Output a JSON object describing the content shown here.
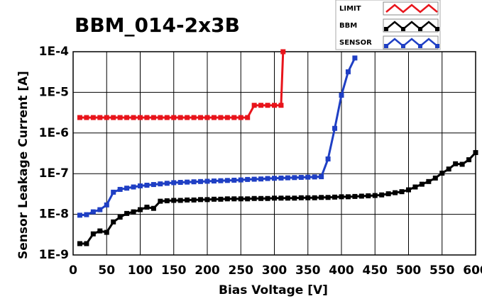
{
  "chart_data": {
    "type": "line",
    "title": "BBM_014-2x3B",
    "x_label": "Bias Voltage [V]",
    "y_label": "Sensor Leakage Current [A]",
    "xlim": [
      0,
      600
    ],
    "xticks": [
      0,
      50,
      100,
      150,
      200,
      250,
      300,
      350,
      400,
      450,
      500,
      550,
      600
    ],
    "ylim": [
      1e-09,
      0.0001
    ],
    "y_scale": "log",
    "yticks": [
      {
        "value": 1e-09,
        "label": "1E-9"
      },
      {
        "value": 1e-08,
        "label": "1E-8"
      },
      {
        "value": 1e-07,
        "label": "1E-7"
      },
      {
        "value": 1e-06,
        "label": "1E-6"
      },
      {
        "value": 1e-05,
        "label": "1E-5"
      },
      {
        "value": 0.0001,
        "label": "1E-4"
      }
    ],
    "grid": true,
    "legend": "top-right",
    "series": [
      {
        "name": "LIMIT",
        "color": "#e8141b",
        "x": [
          10,
          20,
          30,
          40,
          50,
          60,
          70,
          80,
          90,
          100,
          110,
          120,
          130,
          140,
          150,
          160,
          170,
          180,
          190,
          200,
          210,
          220,
          230,
          240,
          250,
          260,
          270,
          280,
          290,
          300,
          310,
          313
        ],
        "values": [
          2.4e-06,
          2.4e-06,
          2.4e-06,
          2.4e-06,
          2.4e-06,
          2.4e-06,
          2.4e-06,
          2.4e-06,
          2.4e-06,
          2.4e-06,
          2.4e-06,
          2.4e-06,
          2.4e-06,
          2.4e-06,
          2.4e-06,
          2.4e-06,
          2.4e-06,
          2.4e-06,
          2.4e-06,
          2.4e-06,
          2.4e-06,
          2.4e-06,
          2.4e-06,
          2.4e-06,
          2.4e-06,
          2.4e-06,
          4.8e-06,
          4.8e-06,
          4.8e-06,
          4.8e-06,
          4.8e-06,
          0.0001
        ]
      },
      {
        "name": "BBM",
        "color": "#000000",
        "x": [
          10,
          20,
          30,
          40,
          50,
          60,
          70,
          80,
          90,
          100,
          110,
          120,
          130,
          140,
          150,
          160,
          170,
          180,
          190,
          200,
          210,
          220,
          230,
          240,
          250,
          260,
          270,
          280,
          290,
          300,
          310,
          320,
          330,
          340,
          350,
          360,
          370,
          380,
          390,
          400,
          410,
          420,
          430,
          440,
          450,
          460,
          470,
          480,
          490,
          500,
          510,
          520,
          530,
          540,
          550,
          560,
          570,
          580,
          590,
          600
        ],
        "values": [
          1.9e-09,
          1.9e-09,
          3.3e-09,
          3.9e-09,
          3.6e-09,
          6.5e-09,
          8.5e-09,
          1.05e-08,
          1.15e-08,
          1.3e-08,
          1.5e-08,
          1.4e-08,
          2.1e-08,
          2.15e-08,
          2.2e-08,
          2.2e-08,
          2.25e-08,
          2.25e-08,
          2.3e-08,
          2.3e-08,
          2.35e-08,
          2.35e-08,
          2.4e-08,
          2.4e-08,
          2.4e-08,
          2.4e-08,
          2.45e-08,
          2.45e-08,
          2.45e-08,
          2.5e-08,
          2.5e-08,
          2.5e-08,
          2.5e-08,
          2.55e-08,
          2.55e-08,
          2.55e-08,
          2.6e-08,
          2.6e-08,
          2.65e-08,
          2.7e-08,
          2.7e-08,
          2.75e-08,
          2.8e-08,
          2.85e-08,
          2.9e-08,
          3e-08,
          3.2e-08,
          3.4e-08,
          3.6e-08,
          4e-08,
          4.7e-08,
          5.5e-08,
          6.4e-08,
          7.8e-08,
          1.03e-07,
          1.3e-07,
          1.75e-07,
          1.7e-07,
          2.2e-07,
          3.3e-07
        ]
      },
      {
        "name": "SENSOR",
        "color": "#1f3fc4",
        "x": [
          10,
          20,
          30,
          40,
          50,
          60,
          70,
          80,
          90,
          100,
          110,
          120,
          130,
          140,
          150,
          160,
          170,
          180,
          190,
          200,
          210,
          220,
          230,
          240,
          250,
          260,
          270,
          280,
          290,
          300,
          310,
          320,
          330,
          340,
          350,
          360,
          370,
          380,
          390,
          400,
          410,
          420
        ],
        "values": [
          9.5e-09,
          9.8e-09,
          1.15e-08,
          1.3e-08,
          1.7e-08,
          3.5e-08,
          4.1e-08,
          4.4e-08,
          4.7e-08,
          5e-08,
          5.2e-08,
          5.4e-08,
          5.6e-08,
          5.8e-08,
          6e-08,
          6.1e-08,
          6.2e-08,
          6.3e-08,
          6.4e-08,
          6.5e-08,
          6.6e-08,
          6.7e-08,
          6.8e-08,
          6.9e-08,
          7e-08,
          7.2e-08,
          7.3e-08,
          7.4e-08,
          7.6e-08,
          7.7e-08,
          7.8e-08,
          7.9e-08,
          8e-08,
          8.1e-08,
          8.2e-08,
          8.3e-08,
          8.4e-08,
          2.3e-07,
          1.3e-06,
          8.5e-06,
          3.2e-05,
          7e-05
        ]
      }
    ]
  }
}
